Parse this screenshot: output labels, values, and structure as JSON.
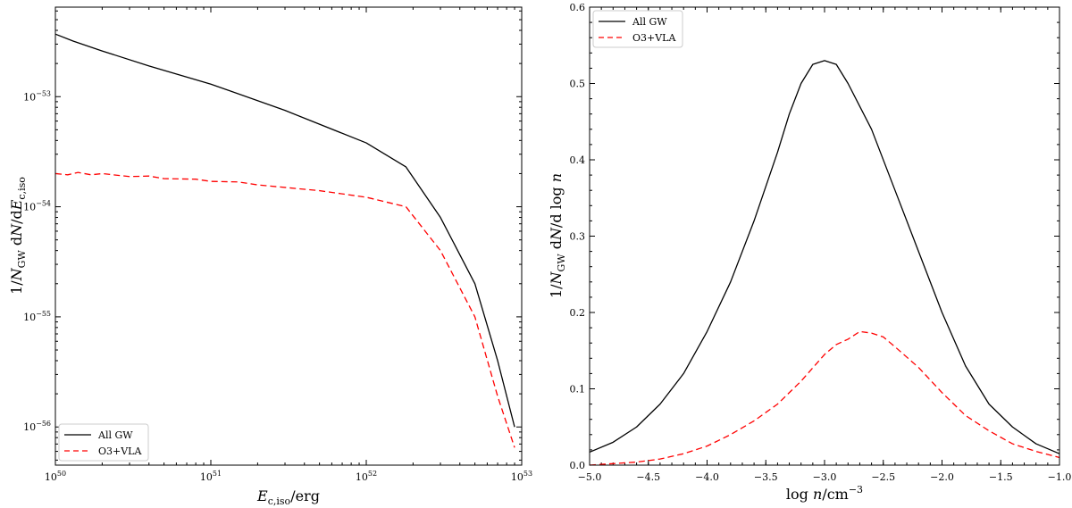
{
  "chart_data": [
    {
      "type": "line",
      "xscale": "log",
      "yscale": "log",
      "xlim": [
        1e+50,
        1e+53
      ],
      "ylim": [
        4.5e-57,
        6.5e-53
      ],
      "xlabel": "E_c,iso/erg",
      "ylabel": "1/N_GW dN/dE_c,iso",
      "xticks": [
        {
          "value": 1e+50,
          "base": "10",
          "exp": "50"
        },
        {
          "value": 1e+51,
          "base": "10",
          "exp": "51"
        },
        {
          "value": 1e+52,
          "base": "10",
          "exp": "52"
        },
        {
          "value": 1e+53,
          "base": "10",
          "exp": "53"
        }
      ],
      "yticks": [
        {
          "value": 1e-56,
          "base": "10",
          "exp": "−56"
        },
        {
          "value": 1e-55,
          "base": "10",
          "exp": "−55"
        },
        {
          "value": 1e-54,
          "base": "10",
          "exp": "−54"
        },
        {
          "value": 1e-53,
          "base": "10",
          "exp": "−53"
        }
      ],
      "legend_position": "lower-left",
      "series": [
        {
          "name": "All GW",
          "color": "#000000",
          "dash": "solid",
          "points": [
            [
              1e+50,
              3.7e-53
            ],
            [
              1.3e+50,
              3.2e-53
            ],
            [
              2e+50,
              2.6e-53
            ],
            [
              4e+50,
              1.9e-53
            ],
            [
              1e+51,
              1.3e-53
            ],
            [
              3e+51,
              7.5e-54
            ],
            [
              1e+52,
              3.8e-54
            ],
            [
              1.8e+52,
              2.3e-54
            ],
            [
              3e+52,
              8e-55
            ],
            [
              5e+52,
              2e-55
            ],
            [
              7e+52,
              4e-56
            ],
            [
              9e+52,
              1e-56
            ]
          ]
        },
        {
          "name": "O3+VLA",
          "color": "#ff0000",
          "dash": "dashed",
          "points": [
            [
              1e+50,
              2e-54
            ],
            [
              1.2e+50,
              1.95e-54
            ],
            [
              1.4e+50,
              2.05e-54
            ],
            [
              1.7e+50,
              1.95e-54
            ],
            [
              2e+50,
              2e-54
            ],
            [
              3e+50,
              1.88e-54
            ],
            [
              4e+50,
              1.9e-54
            ],
            [
              5e+50,
              1.8e-54
            ],
            [
              8e+50,
              1.78e-54
            ],
            [
              1e+51,
              1.7e-54
            ],
            [
              1.5e+51,
              1.68e-54
            ],
            [
              2e+51,
              1.58e-54
            ],
            [
              5e+51,
              1.4e-54
            ],
            [
              1e+52,
              1.22e-54
            ],
            [
              1.8e+52,
              1e-54
            ],
            [
              3e+52,
              4e-55
            ],
            [
              5e+52,
              1e-55
            ],
            [
              7e+52,
              1.9e-56
            ],
            [
              9e+52,
              6.5e-57
            ]
          ]
        }
      ]
    },
    {
      "type": "line",
      "xscale": "linear",
      "yscale": "linear",
      "xlim": [
        -5.0,
        -1.0
      ],
      "ylim": [
        0,
        0.6
      ],
      "xlabel": "log n/cm^-3",
      "ylabel": "1/N_GW dN/d log n",
      "xticks": [
        {
          "value": -5.0,
          "label": "−5.0"
        },
        {
          "value": -4.5,
          "label": "−4.5"
        },
        {
          "value": -4.0,
          "label": "−4.0"
        },
        {
          "value": -3.5,
          "label": "−3.5"
        },
        {
          "value": -3.0,
          "label": "−3.0"
        },
        {
          "value": -2.5,
          "label": "−2.5"
        },
        {
          "value": -2.0,
          "label": "−2.0"
        },
        {
          "value": -1.5,
          "label": "−1.5"
        },
        {
          "value": -1.0,
          "label": "−1.0"
        }
      ],
      "yticks": [
        {
          "value": 0.0,
          "label": "0.0"
        },
        {
          "value": 0.1,
          "label": "0.1"
        },
        {
          "value": 0.2,
          "label": "0.2"
        },
        {
          "value": 0.3,
          "label": "0.3"
        },
        {
          "value": 0.4,
          "label": "0.4"
        },
        {
          "value": 0.5,
          "label": "0.5"
        },
        {
          "value": 0.6,
          "label": "0.6"
        }
      ],
      "legend_position": "upper-left",
      "series": [
        {
          "name": "All GW",
          "color": "#000000",
          "dash": "solid",
          "points": [
            [
              -5.0,
              0.017
            ],
            [
              -4.8,
              0.03
            ],
            [
              -4.6,
              0.05
            ],
            [
              -4.4,
              0.08
            ],
            [
              -4.2,
              0.12
            ],
            [
              -4.0,
              0.175
            ],
            [
              -3.8,
              0.24
            ],
            [
              -3.6,
              0.32
            ],
            [
              -3.4,
              0.41
            ],
            [
              -3.3,
              0.46
            ],
            [
              -3.2,
              0.5
            ],
            [
              -3.1,
              0.525
            ],
            [
              -3.0,
              0.53
            ],
            [
              -2.9,
              0.525
            ],
            [
              -2.8,
              0.5
            ],
            [
              -2.7,
              0.47
            ],
            [
              -2.6,
              0.44
            ],
            [
              -2.4,
              0.36
            ],
            [
              -2.2,
              0.28
            ],
            [
              -2.0,
              0.2
            ],
            [
              -1.8,
              0.13
            ],
            [
              -1.6,
              0.08
            ],
            [
              -1.4,
              0.05
            ],
            [
              -1.2,
              0.028
            ],
            [
              -1.0,
              0.015
            ]
          ]
        },
        {
          "name": "O3+VLA",
          "color": "#ff0000",
          "dash": "dashed",
          "points": [
            [
              -5.0,
              0.0
            ],
            [
              -4.8,
              0.002
            ],
            [
              -4.6,
              0.004
            ],
            [
              -4.4,
              0.008
            ],
            [
              -4.2,
              0.015
            ],
            [
              -4.0,
              0.025
            ],
            [
              -3.8,
              0.04
            ],
            [
              -3.6,
              0.058
            ],
            [
              -3.4,
              0.08
            ],
            [
              -3.2,
              0.11
            ],
            [
              -3.0,
              0.145
            ],
            [
              -2.9,
              0.158
            ],
            [
              -2.8,
              0.165
            ],
            [
              -2.7,
              0.175
            ],
            [
              -2.6,
              0.173
            ],
            [
              -2.5,
              0.168
            ],
            [
              -2.4,
              0.155
            ],
            [
              -2.2,
              0.128
            ],
            [
              -2.0,
              0.095
            ],
            [
              -1.8,
              0.065
            ],
            [
              -1.6,
              0.045
            ],
            [
              -1.4,
              0.028
            ],
            [
              -1.2,
              0.018
            ],
            [
              -1.0,
              0.01
            ]
          ]
        }
      ]
    }
  ]
}
